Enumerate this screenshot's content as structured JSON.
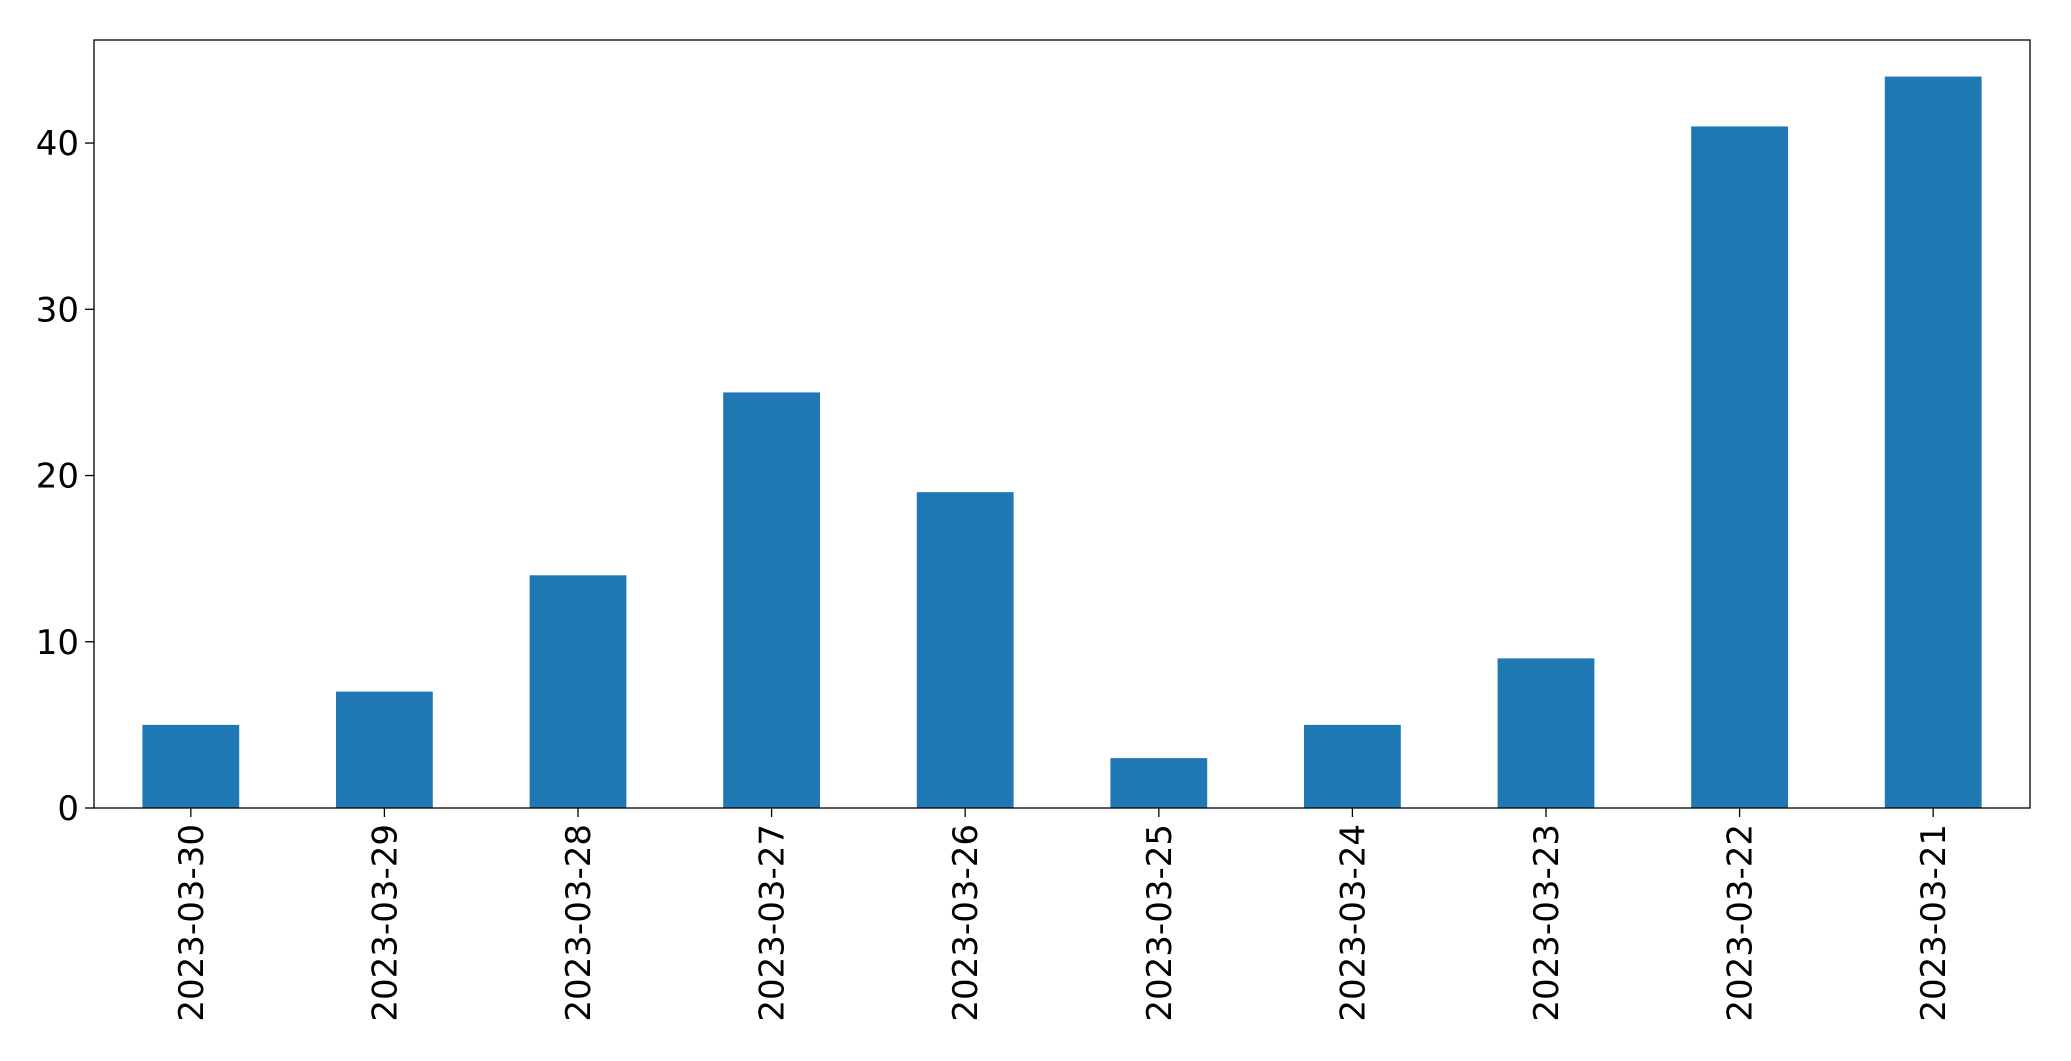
{
  "chart_data": {
    "type": "bar",
    "categories": [
      "2023-03-30",
      "2023-03-29",
      "2023-03-28",
      "2023-03-27",
      "2023-03-26",
      "2023-03-25",
      "2023-03-24",
      "2023-03-23",
      "2023-03-22",
      "2023-03-21"
    ],
    "values": [
      5,
      7,
      14,
      25,
      19,
      3,
      5,
      9,
      41,
      44
    ],
    "color": "#1f77b4",
    "ylim": [
      0,
      46.2
    ],
    "yticks": [
      0,
      10,
      20,
      30,
      40
    ],
    "grid": false
  }
}
